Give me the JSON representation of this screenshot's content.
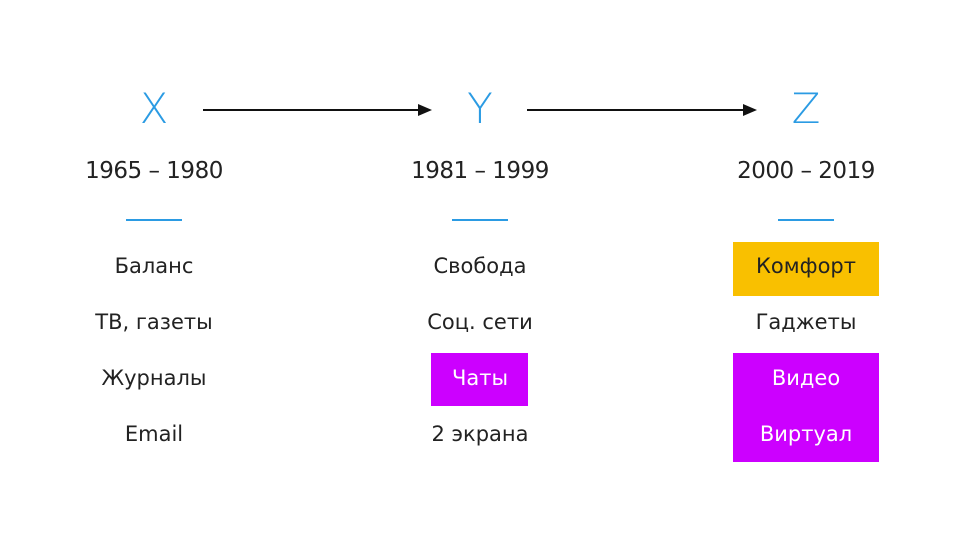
{
  "columns": [
    {
      "letter": "X",
      "years": "1965 – 1980",
      "items": [
        "Баланс",
        "ТВ, газеты",
        "Журналы",
        "Email"
      ]
    },
    {
      "letter": "Y",
      "years": "1981 – 1999",
      "items": [
        "Свобода",
        "Соц. сети",
        "Чаты",
        "2 экрана"
      ]
    },
    {
      "letter": "Z",
      "years": "2000 – 2019",
      "items": [
        "Комфорт",
        "Гаджеты",
        "Видео",
        "Виртуал"
      ]
    }
  ]
}
